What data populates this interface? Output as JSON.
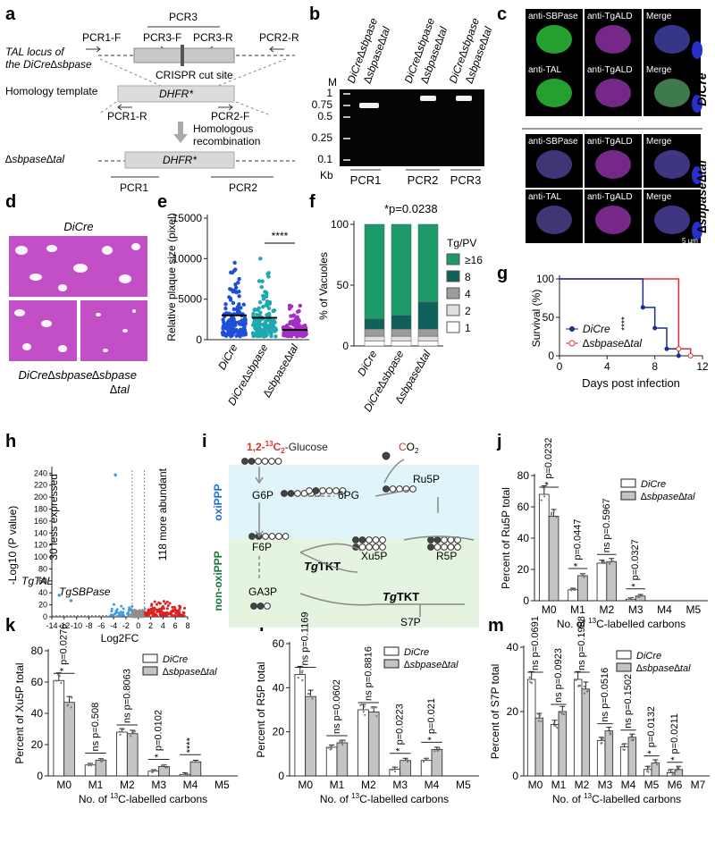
{
  "panel_letters": [
    "a",
    "b",
    "c",
    "d",
    "e",
    "f",
    "g",
    "h",
    "i",
    "j",
    "k",
    "l",
    "m"
  ],
  "panel_a": {
    "pcr3": "PCR3",
    "pcr1f": "PCR1-F",
    "pcr3f": "PCR3-F",
    "pcr3r": "PCR3-R",
    "pcr2r": "PCR2-R",
    "locus_line1": "TAL locus of",
    "locus_line2": "the DiCre∆sbpase",
    "cut_site": "CRISPR cut site",
    "homology": "Homology template",
    "dhfr": "DHFR*",
    "pcr1r": "PCR1-R",
    "pcr2f": "PCR2-F",
    "homol_line1": "Homologous",
    "homol_line2": "recombination",
    "mutant": "∆sbpase∆tal",
    "pcr1": "PCR1",
    "pcr2": "PCR2"
  },
  "panel_b": {
    "lanes": [
      "DiCre∆sbpase",
      "∆sbpase∆tal",
      "DiCre∆sbpase",
      "∆sbpase∆tal",
      "DiCre∆sbpase",
      "∆sbpase∆tal"
    ],
    "marker": "M",
    "ladder": [
      "1",
      "0.75",
      "0.5",
      "0.25",
      "0.1"
    ],
    "unit": "Kb",
    "groups": [
      "PCR1",
      "PCR2",
      "PCR3"
    ]
  },
  "panel_c": {
    "headers": [
      [
        "anti-SBPase",
        "anti-TgALD",
        "Merge"
      ],
      [
        "anti-TAL",
        "anti-TgALD",
        "Merge"
      ],
      [
        "anti-SBPase",
        "anti-TgALD",
        "Merge"
      ],
      [
        "anti-TAL",
        "anti-TgALD",
        "Merge"
      ]
    ],
    "group1": "DiCre",
    "group2": "∆sbpase∆tal",
    "scale": "5 µm"
  },
  "panel_d": {
    "top": "DiCre",
    "bl": "DiCre∆sbpase",
    "br1": "∆sbpase",
    "br2": "∆tal"
  },
  "panel_e": {
    "ylabel": "Relative plaque size (pixel)",
    "yticks": [
      "0",
      "5000",
      "10000",
      "15000"
    ],
    "categories": [
      "DiCre",
      "DiCre∆sbpase",
      "∆sbpase∆tal"
    ],
    "sig": "****"
  },
  "panel_f": {
    "pvalue": "*p=0.0238",
    "ylabel": "% of Vacuoles",
    "yticks": [
      "0",
      "50",
      "100"
    ],
    "legend_title": "Tg/PV",
    "legend": [
      "≥16",
      "8",
      "4",
      "2",
      "1"
    ],
    "categories": [
      "DiCre",
      "DiCre∆sbpase",
      "∆sbpase∆tal"
    ]
  },
  "panel_g": {
    "ylabel": "Survival (%)",
    "xlabel": "Days post infection",
    "yticks": [
      "0",
      "50",
      "100"
    ],
    "xticks": [
      "0",
      "4",
      "8",
      "12"
    ],
    "legend": [
      "DiCre",
      "∆sbpase∆tal"
    ],
    "sig": "****"
  },
  "panel_h": {
    "ylabel": "-Log10 (P value)",
    "xlabel": "Log2FC",
    "yticks": [
      "0",
      "20",
      "40",
      "60",
      "80",
      "100",
      "120",
      "140",
      "160",
      "180",
      "200",
      "220",
      "240"
    ],
    "xticks": [
      "-14",
      "-12",
      "-10",
      "-8",
      "-6",
      "-4",
      "-2",
      "0",
      "2",
      "4",
      "6",
      "8"
    ],
    "less": "30 less expressed",
    "more": "118 more abundant",
    "tal": "TgTAL",
    "sbp": "TgSBPase"
  },
  "panel_i": {
    "glucose": "1,2-13C2-Glucose",
    "g6p": "G6P",
    "pg6": "6PG",
    "co2": "CO2",
    "ru5p": "Ru5P",
    "f6p": "F6P",
    "xu5p": "Xu5P",
    "r5p": "R5P",
    "ga3p": "GA3P",
    "s7p": "S7P",
    "tkt": "TgTKT",
    "oxi": "oxiPPP",
    "nonoxi": "non-oxiPPP"
  },
  "isotope_charts": [
    {
      "panel": "j",
      "type": "bar",
      "ylabel": "Percent of Ru5P total",
      "xlabel": "No. of 13C-labelled carbons",
      "categories": [
        "M0",
        "M1",
        "M2",
        "M3",
        "M4",
        "M5"
      ],
      "ylim": [
        0,
        80
      ],
      "yticks": [
        "0",
        "20",
        "40",
        "60",
        "80"
      ],
      "series": [
        {
          "name": "DiCre",
          "values": [
            68,
            7,
            24,
            1,
            0,
            0
          ]
        },
        {
          "name": "∆sbpase∆tal",
          "values": [
            54,
            16,
            25,
            3,
            0,
            0
          ]
        }
      ],
      "annotations": [
        "* p=0.0232",
        "* p=0.0447",
        "ns p=0.5967",
        "* p=0.0327"
      ]
    },
    {
      "panel": "k",
      "type": "bar",
      "ylabel": "Percent of Xu5P total",
      "xlabel": "No. of 13C-labelled carbons",
      "categories": [
        "M0",
        "M1",
        "M2",
        "M3",
        "M4",
        "M5"
      ],
      "ylim": [
        0,
        80
      ],
      "yticks": [
        "0",
        "20",
        "40",
        "60",
        "80"
      ],
      "series": [
        {
          "name": "DiCre",
          "values": [
            61,
            7,
            28,
            3,
            1,
            0
          ]
        },
        {
          "name": "∆sbpase∆tal",
          "values": [
            47,
            10,
            27,
            6,
            9,
            0
          ]
        }
      ],
      "annotations": [
        "* p=0.0276",
        "ns p=0.508",
        "ns p=0.8063",
        "* p=0.0102",
        "****"
      ]
    },
    {
      "panel": "l",
      "type": "bar",
      "ylabel": "Percent of R5P total",
      "xlabel": "No. of 13C-labelled carbons",
      "categories": [
        "M0",
        "M1",
        "M2",
        "M3",
        "M4",
        "M5"
      ],
      "ylim": [
        0,
        60
      ],
      "yticks": [
        "0",
        "20",
        "40",
        "60"
      ],
      "series": [
        {
          "name": "DiCre",
          "values": [
            46,
            13,
            30,
            3,
            7,
            0
          ]
        },
        {
          "name": "∆sbpase∆tal",
          "values": [
            36,
            15,
            29,
            7,
            12,
            0
          ]
        }
      ],
      "annotations": [
        "ns p=0.1169",
        "ns p=0.0602",
        "ns p=0.8816",
        "* p=0.0223",
        "* p=0.021"
      ]
    },
    {
      "panel": "m",
      "type": "bar",
      "ylabel": "Percent of S7P total",
      "xlabel": "No. of 13C-labelled carbons",
      "categories": [
        "M0",
        "M1",
        "M2",
        "M3",
        "M4",
        "M5",
        "M6",
        "M7"
      ],
      "ylim": [
        0,
        40
      ],
      "yticks": [
        "0",
        "20",
        "40"
      ],
      "series": [
        {
          "name": "DiCre",
          "values": [
            30,
            16,
            30,
            11,
            9,
            2,
            1,
            0
          ]
        },
        {
          "name": "∆sbpase∆tal",
          "values": [
            18,
            20,
            27,
            14,
            12,
            4,
            2,
            0
          ]
        }
      ],
      "annotations": [
        "ns p=0.0691",
        "ns p=0.0923",
        "ns p=0.1988",
        "ns p=0.0516",
        "ns p=0.1502",
        "* p=0.0132",
        "* p=0.0211"
      ]
    }
  ],
  "colors": {
    "dicre": "#1b2d8f",
    "mutant": "#e0302a",
    "green_dark": "#0e6b45",
    "green_mid": "#1f9e6a",
    "grey_bar": "#c4c4c4"
  }
}
